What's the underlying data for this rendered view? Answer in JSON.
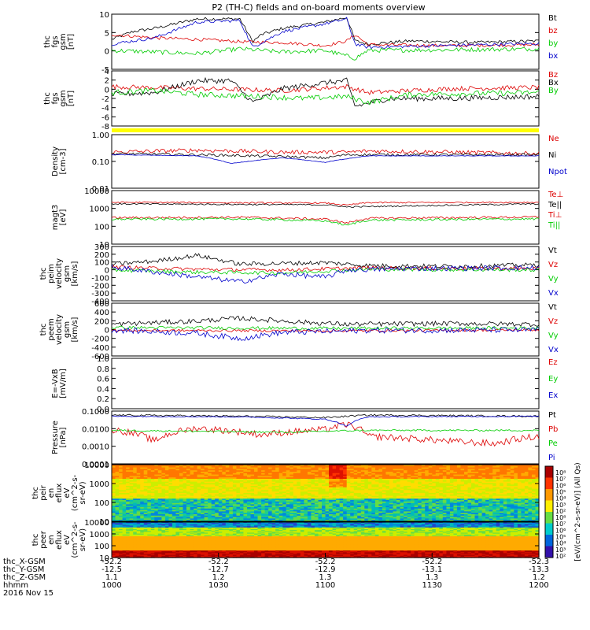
{
  "chart_data": {
    "type": "line",
    "title": "P2 (TH-C) fields and on-board moments overview",
    "panels": [
      {
        "id": "fgs",
        "ylabel": [
          "thc",
          "fgs",
          "gsm",
          "[nT]"
        ],
        "ticks": [
          "10",
          "5",
          "0",
          "-5"
        ],
        "ylim": [
          -7,
          10.5
        ],
        "series": [
          {
            "name": "Bt",
            "color": "#000000"
          },
          {
            "name": "bz",
            "color": "#dd0000"
          },
          {
            "name": "by",
            "color": "#00cc00"
          },
          {
            "name": "bx",
            "color": "#0000cc"
          }
        ]
      },
      {
        "id": "fgs-gsm",
        "ylabel": [
          "thc",
          "fgs",
          "gsm",
          "[nT]"
        ],
        "ticks": [
          "4",
          "2",
          "0",
          "-2",
          "-4",
          "-6",
          "-8"
        ],
        "ylim": [
          -9,
          5
        ],
        "series": [
          {
            "name": "Bz",
            "color": "#dd0000"
          },
          {
            "name": "Bx",
            "color": "#000000"
          },
          {
            "name": "By",
            "color": "#00cc00"
          }
        ]
      },
      {
        "id": "density",
        "ylabel": [
          "Density",
          "[cm-3]"
        ],
        "ticks": [
          "1.00",
          "0.10",
          "0.01"
        ],
        "log": true,
        "ylim": [
          0.01,
          1.2
        ],
        "series": [
          {
            "name": "Ne",
            "color": "#dd0000"
          },
          {
            "name": "Ni",
            "color": "#000000"
          },
          {
            "name": "Npot",
            "color": "#0000cc"
          }
        ]
      },
      {
        "id": "temp",
        "ylabel": [
          "magt3",
          "[eV]"
        ],
        "ticks": [
          "10000",
          "1000",
          "100",
          "10"
        ],
        "log": true,
        "ylim": [
          10,
          10000
        ],
        "series": [
          {
            "name": "Te⊥",
            "color": "#dd0000"
          },
          {
            "name": "Te||",
            "color": "#000000"
          },
          {
            "name": "Ti⊥",
            "color": "#dd0000"
          },
          {
            "name": "Ti||",
            "color": "#00cc00"
          }
        ]
      },
      {
        "id": "vel-ion",
        "ylabel": [
          "thc",
          "peim",
          "velocity",
          "gsm",
          "[km/s]"
        ],
        "ticks": [
          "300",
          "200",
          "100",
          "0",
          "-100",
          "-200",
          "-300",
          "-400"
        ],
        "ylim": [
          -420,
          320
        ],
        "series": [
          {
            "name": "Vt",
            "color": "#000000"
          },
          {
            "name": "Vz",
            "color": "#dd0000"
          },
          {
            "name": "Vy",
            "color": "#00cc00"
          },
          {
            "name": "Vx",
            "color": "#0000cc"
          }
        ]
      },
      {
        "id": "vel-ele",
        "ylabel": [
          "thc",
          "peem",
          "velocity",
          "gsm",
          "[km/s]"
        ],
        "ticks": [
          "600",
          "400",
          "200",
          "0",
          "-200",
          "-400",
          "-600"
        ],
        "ylim": [
          -680,
          620
        ],
        "series": [
          {
            "name": "Vt",
            "color": "#000000"
          },
          {
            "name": "Vz",
            "color": "#dd0000"
          },
          {
            "name": "Vy",
            "color": "#00cc00"
          },
          {
            "name": "Vx",
            "color": "#0000cc"
          }
        ]
      },
      {
        "id": "efield",
        "ylabel": [
          "E=-VxB",
          "[mV/m]"
        ],
        "ticks": [
          "1.0",
          "0.8",
          "0.6",
          "0.4",
          "0.2",
          "0.0"
        ],
        "ylim": [
          0,
          1
        ],
        "series": [
          {
            "name": "Ez",
            "color": "#dd0000"
          },
          {
            "name": "Ey",
            "color": "#00cc00"
          },
          {
            "name": "Ex",
            "color": "#0000cc"
          }
        ]
      },
      {
        "id": "pressure",
        "ylabel": [
          "Pressure",
          "[nPa]"
        ],
        "ticks": [
          "0.1000",
          "0.0100",
          "0.0010",
          "0.0001"
        ],
        "log": true,
        "ylim": [
          0.0001,
          0.12
        ],
        "series": [
          {
            "name": "Pt",
            "color": "#000000"
          },
          {
            "name": "Pb",
            "color": "#dd0000"
          },
          {
            "name": "Pe",
            "color": "#00cc00"
          },
          {
            "name": "Pi",
            "color": "#0000cc"
          }
        ]
      },
      {
        "id": "spec-ion",
        "ylabel": [
          "thc",
          "peir",
          "en",
          "eflux",
          "eV",
          "(cm^2-s-",
          "sr-eV)"
        ],
        "ticks": [
          "10000",
          "1000",
          "100",
          "10"
        ],
        "log": true,
        "ylim": [
          5,
          20000
        ]
      },
      {
        "id": "spec-ele",
        "ylabel": [
          "thc",
          "peer",
          "en",
          "eflux",
          "eV",
          "(cm^2-s-",
          "sr-eV)"
        ],
        "ticks": [
          "10000",
          "1000",
          "100",
          "10"
        ],
        "log": true,
        "ylim": [
          5,
          20000
        ]
      }
    ],
    "colorbar": {
      "label": "[eV/(cm^2-s-sr-eV)] (All Qs)",
      "ticks": [
        "10⁸",
        "10⁷",
        "10⁶",
        "10⁵",
        "10⁴",
        "10³",
        "10²",
        "10⁸",
        "10⁷",
        "10⁶",
        "10⁵",
        "10⁴",
        "10³",
        "10²"
      ]
    },
    "yellow_bar_color": "#ffff00",
    "x": {
      "type": "time",
      "ticks": [
        "1000",
        "1030",
        "1100",
        "1130",
        "1200"
      ],
      "rows": [
        {
          "label": "thc_X-GSM",
          "values": [
            "-52.2",
            "-52.2",
            "-52.2",
            "-52.2",
            "-52.3"
          ]
        },
        {
          "label": "thc_Y-GSM",
          "values": [
            "-12.5",
            "-12.7",
            "-12.9",
            "-13.1",
            "-13.3"
          ]
        },
        {
          "label": "thc_Z-GSM",
          "values": [
            "1.1",
            "1.2",
            "1.3",
            "1.3",
            "1.2"
          ]
        },
        {
          "label": "hhmm",
          "values": [
            "1000",
            "1030",
            "1100",
            "1130",
            "1200"
          ]
        }
      ],
      "date": "2016 Nov 15"
    }
  }
}
